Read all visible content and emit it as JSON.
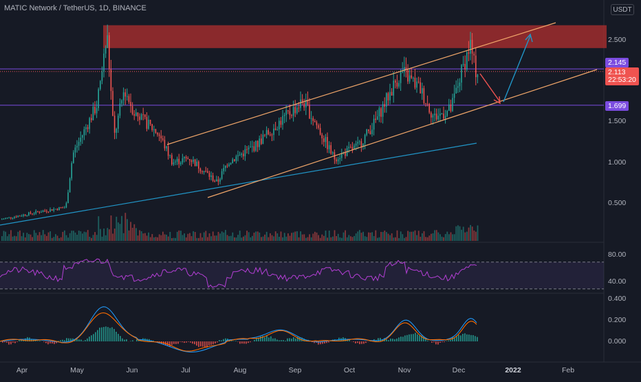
{
  "header": {
    "symbol_title": "MATIC Network / TetherUS, 1D, BINANCE",
    "currency_button": "USDT"
  },
  "price_axis": {
    "ticks": [
      "2.500",
      "1.500",
      "1.000",
      "0.500"
    ]
  },
  "price_tags": {
    "resistance_level": "2.145",
    "last_price": "2.113",
    "countdown": "22:53:20",
    "support_level": "1.699"
  },
  "rsi_axis": {
    "ticks": [
      "80.00",
      "40.00"
    ]
  },
  "macd_axis": {
    "ticks": [
      "0.400",
      "0.200",
      "0.000"
    ]
  },
  "time_axis": {
    "labels": [
      "Apr",
      "May",
      "Jun",
      "Jul",
      "Aug",
      "Sep",
      "Oct",
      "Nov",
      "Dec",
      "2022",
      "Feb"
    ]
  },
  "colors": {
    "background": "#161a25",
    "up": "#26a69a",
    "down": "#ef5350",
    "resistance_zone": "#b22f2f",
    "channel": "#f2a76a",
    "trendline": "#2196c8",
    "level_line": "#7b4ce0",
    "rsi": "#b53fd6",
    "macd": "#2196f3",
    "signal": "#ff6d00"
  },
  "chart_data": {
    "type": "candlestick",
    "title": "MATIC Network / TetherUS, 1D, BINANCE",
    "price_range": [
      0.0,
      2.85
    ],
    "levels": [
      2.145,
      1.699
    ],
    "last_price": 2.113,
    "resistance_zone": [
      2.4,
      2.68
    ],
    "closes_monthly": [
      {
        "month": "Apr",
        "close": 0.4
      },
      {
        "month": "May",
        "close": 1.3
      },
      {
        "month": "Jun",
        "close": 1.35
      },
      {
        "month": "Jul",
        "close": 0.8
      },
      {
        "month": "Aug",
        "close": 1.55
      },
      {
        "month": "Sep",
        "close": 1.6
      },
      {
        "month": "Oct",
        "close": 1.35
      },
      {
        "month": "Nov",
        "close": 1.65
      },
      {
        "month": "Dec",
        "close": 2.11
      }
    ],
    "rsi_levels": [
      80,
      40
    ],
    "macd_range": [
      -0.1,
      0.4
    ]
  }
}
